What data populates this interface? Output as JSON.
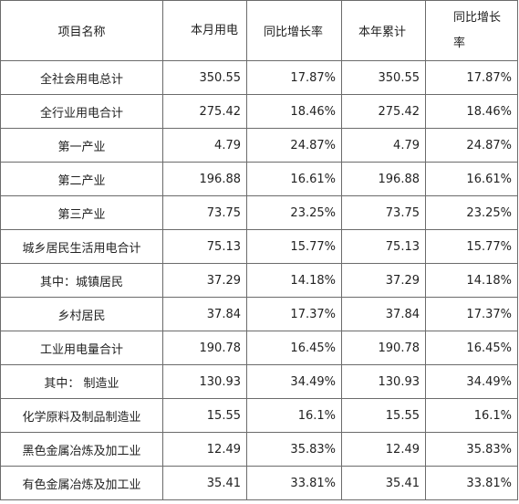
{
  "headers": [
    "项目名称",
    "本月用电",
    "同比增长率",
    "本年累计",
    "同比增长率"
  ],
  "rows": [
    [
      "全社会用电总计",
      "350.55",
      "17.87%",
      "350.55",
      "17.87%"
    ],
    [
      "全行业用电合计",
      "275.42",
      "18.46%",
      "275.42",
      "18.46%"
    ],
    [
      "第一产业",
      "4.79",
      "24.87%",
      "4.79",
      "24.87%"
    ],
    [
      "第二产业",
      "196.88",
      "16.61%",
      "196.88",
      "16.61%"
    ],
    [
      "第三产业",
      "73.75",
      "23.25%",
      "73.75",
      "23.25%"
    ],
    [
      "城乡居民生活用电合计",
      "75.13",
      "15.77%",
      "75.13",
      "15.77%"
    ],
    [
      "其中：城镇居民",
      "37.29",
      "14.18%",
      "37.29",
      "14.18%"
    ],
    [
      "乡村居民",
      "37.84",
      "17.37%",
      "37.84",
      "17.37%"
    ],
    [
      "工业用电量合计",
      "190.78",
      "16.45%",
      "190.78",
      "16.45%"
    ],
    [
      "其中： 制造业",
      "130.93",
      "34.49%",
      "130.93",
      "34.49%"
    ],
    [
      "化学原料及制品制造业",
      "15.55",
      "16.1%",
      "15.55",
      "16.1%"
    ],
    [
      "黑色金属冶炼及加工业",
      "12.49",
      "35.83%",
      "12.49",
      "35.83%"
    ],
    [
      "有色金属冶炼及加工业",
      "35.41",
      "33.81%",
      "35.41",
      "33.81%"
    ]
  ]
}
